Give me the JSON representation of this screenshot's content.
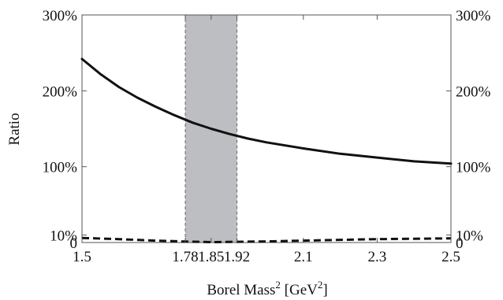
{
  "chart_data": {
    "type": "line",
    "title": "",
    "xlabel": "Borel Mass",
    "xlabel_sup": "2",
    "xlabel_unit_pre": "[GeV",
    "xlabel_unit_sup": "2",
    "xlabel_unit_post": "]",
    "ylabel": "Ratio",
    "xlim": [
      1.5,
      2.5
    ],
    "ylim": [
      0,
      300
    ],
    "x_ticks": [
      {
        "value": 1.5,
        "label": "1.5"
      },
      {
        "value": 1.78,
        "label": "1.78"
      },
      {
        "value": 1.85,
        "label": "1.85"
      },
      {
        "value": 1.92,
        "label": "1.92"
      },
      {
        "value": 2.1,
        "label": "2.1"
      },
      {
        "value": 2.3,
        "label": "2.3"
      },
      {
        "value": 2.5,
        "label": "2.5"
      }
    ],
    "y_ticks": [
      {
        "value": 0,
        "label": "0"
      },
      {
        "value": 10,
        "label": "10%"
      },
      {
        "value": 100,
        "label": "100%"
      },
      {
        "value": 200,
        "label": "200%"
      },
      {
        "value": 300,
        "label": "300%"
      }
    ],
    "shaded_band": {
      "x_start": 1.78,
      "x_end": 1.92,
      "color": "#bdbec2"
    },
    "grid": false,
    "series": [
      {
        "style": "solid",
        "color": "#111111",
        "x": [
          1.5,
          1.55,
          1.6,
          1.65,
          1.7,
          1.75,
          1.8,
          1.85,
          1.9,
          1.95,
          2.0,
          2.1,
          2.2,
          2.3,
          2.4,
          2.5
        ],
        "y": [
          242,
          222,
          205,
          191,
          179,
          168,
          158,
          150,
          143,
          137,
          132,
          124,
          117,
          112,
          107,
          104
        ]
      },
      {
        "style": "dashed",
        "color": "#111111",
        "x": [
          1.5,
          1.6,
          1.7,
          1.8,
          1.85,
          1.9,
          2.0,
          2.1,
          2.2,
          2.3,
          2.4,
          2.5
        ],
        "y": [
          6,
          4.5,
          2.5,
          1,
          0.5,
          0.8,
          1.5,
          2.5,
          3.5,
          4.5,
          5,
          5.5
        ]
      }
    ]
  }
}
